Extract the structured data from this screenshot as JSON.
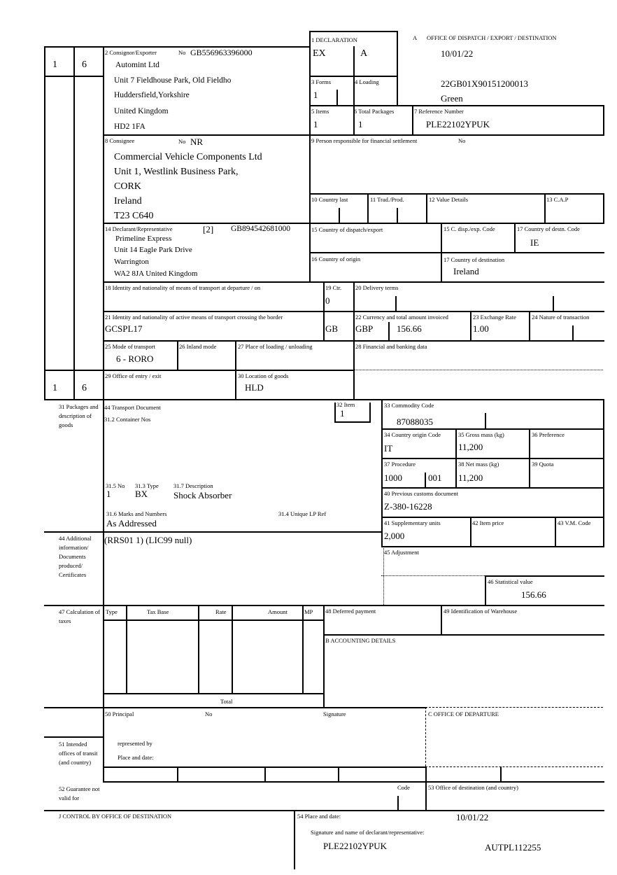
{
  "header": {
    "box1_label": "1 DECLARATION",
    "box1_type": "EX",
    "box1_subtype": "A",
    "office_a_letter": "A",
    "office_a_label": "OFFICE OF DISPATCH / EXPORT / DESTINATION",
    "office_date": "10/01/22",
    "mrn": "22GB01X90151200013",
    "route": "Green",
    "forms_label": "3 Forms",
    "forms_value": "1",
    "loading_label": "4 Loading",
    "items_label": "5 Items",
    "items_value": "1",
    "packages_label": "6 Total Packages",
    "packages_value": "1",
    "ref_label": "7 Reference Number",
    "ref_value": "PLE22102YPUK",
    "copy_top_a": "1",
    "copy_top_b": "6",
    "copy_bottom_a": "1",
    "copy_bottom_b": "6"
  },
  "consignor": {
    "label": "2 Consignor/Exporter",
    "no_label": "No",
    "no": "GB556963396000",
    "lines": [
      "Automint Ltd",
      "Unit 7 Fieldhouse Park, Old Fieldho",
      "Huddersfield,Yorkshire",
      "United Kingdom",
      "HD2 1FA"
    ]
  },
  "consignee": {
    "label": "8 Consignee",
    "no_label": "No",
    "no": "NR",
    "lines": [
      "Commercial Vehicle Components Ltd",
      "Unit 1, Westlink Business Park,",
      "CORK",
      "Ireland",
      "T23 C640"
    ]
  },
  "financial_person": {
    "label": "9 Person responsible for financial settlement",
    "no_label": "No"
  },
  "row10": {
    "country_last": "10 Country last",
    "trad_prod": "11 Trad./Prod.",
    "value_details": "12 Value Details",
    "cap": "13 C.A.P"
  },
  "declarant": {
    "label": "14 Declarant/Representative",
    "status": "[2]",
    "no": "GB894542681000",
    "lines": [
      "Primeline Express",
      "Unit 14 Eagle Park Drive",
      "Warrington",
      "WA2 8JA United Kingdom"
    ]
  },
  "countries": {
    "dispatch_label": "15 Country of dispatch/export",
    "dispatch_code_label": "15 C. disp./exp. Code",
    "dest_code_label": "17 Country of destn. Code",
    "dest_code": "IE",
    "origin_label": "16 Country of origin",
    "dest_label": "17 Country of destination",
    "dest": "Ireland"
  },
  "transport": {
    "departure_label": "18 Identity and nationality of means of transport at departure / on",
    "ctr_label": "19 Ctr.",
    "ctr": "0",
    "delivery_label": "20 Delivery terms",
    "active_label": "21 Identity and nationality of active means of transport crossing the border",
    "active_id": "GCSPL17",
    "active_nat": "GB",
    "currency_label": "22 Currency and total amount invoiced",
    "currency": "GBP",
    "amount": "156.66",
    "rate_label": "23 Exchange Rate",
    "rate": "1.00",
    "nature_label": "24 Nature of transaction",
    "mode_label": "25 Mode of transport",
    "mode": "6 - RORO",
    "inland_label": "26 Inland mode",
    "place_label": "27 Place of loading / unloading",
    "banking_label": "28 Financial and banking data",
    "entry_label": "29 Office of entry / exit",
    "location_label": "30 Location of goods",
    "location": "HLD"
  },
  "goods": {
    "side_label": "31 Packages and description of goods",
    "transport_doc": "44 Transport Document",
    "container_label": "31.2 Container Nos",
    "item_label": "32 Item",
    "item": "1",
    "no_label": "31.5 No",
    "no": "1",
    "type_label": "31.3 Type",
    "type": "BX",
    "desc_label": "31.7 Description",
    "desc": "Shock Absorber",
    "marks_label": "31.6 Marks and Numbers",
    "marks": "As Addressed",
    "lp_label": "31.4 Unique LP Ref",
    "addl_side_label": "44 Additional information/ Documents produced/ Certificates",
    "addl": "(RRS01 1) (LIC99 null)"
  },
  "item_details": {
    "commodity_label": "33 Commodity Code",
    "commodity": "87088035",
    "origin_label": "34 Country origin Code",
    "origin": "IT",
    "gross_label": "35 Gross mass (kg)",
    "gross": "11,200",
    "pref_label": "36 Preference",
    "proc_label": "37 Procedure",
    "proc": "1000",
    "proc2": "001",
    "net_label": "38 Net mass (kg)",
    "net": "11,200",
    "quota_label": "39 Quota",
    "prev_label": "40 Previous customs document",
    "prev": "Z-380-16228",
    "supp_label": "41 Supplementary units",
    "supp": "2,000",
    "price_label": "42 Item price",
    "vm_label": "43 V.M. Code",
    "adj_label": "45 Adjustment",
    "stat_label": "46 Statistical value",
    "stat": "156.66"
  },
  "taxes": {
    "side_label": "47 Calculation of taxes",
    "columns": [
      "Type",
      "Tax Base",
      "Rate",
      "Amount",
      "MP"
    ],
    "total_label": "Total",
    "deferred_label": "48 Deferred payment",
    "warehouse_label": "49 Identification of Warehouse",
    "accounting_label": "B ACCOUNTING DETAILS"
  },
  "principal": {
    "label": "50 Principal",
    "no_label": "No",
    "signature_label": "Signature",
    "office_departure": "C OFFICE OF DEPARTURE",
    "represented": "represented by",
    "place_date": "Place and date:",
    "transit_label": "51 Intended offices of transit (and country)",
    "guarantee_label": "52 Guarantee not valid for",
    "code_label": "Code",
    "dest_office_label": "53 Office of destination (and country)"
  },
  "footer": {
    "control_label": "J CONTROL BY OFFICE OF DESTINATION",
    "place_date_label": "54 Place and date:",
    "date": "10/01/22",
    "signature_label": "Signature and name of declarant/representative:",
    "signature_ref": "PLE22102YPUK",
    "signature_code": "AUTPL112255"
  }
}
